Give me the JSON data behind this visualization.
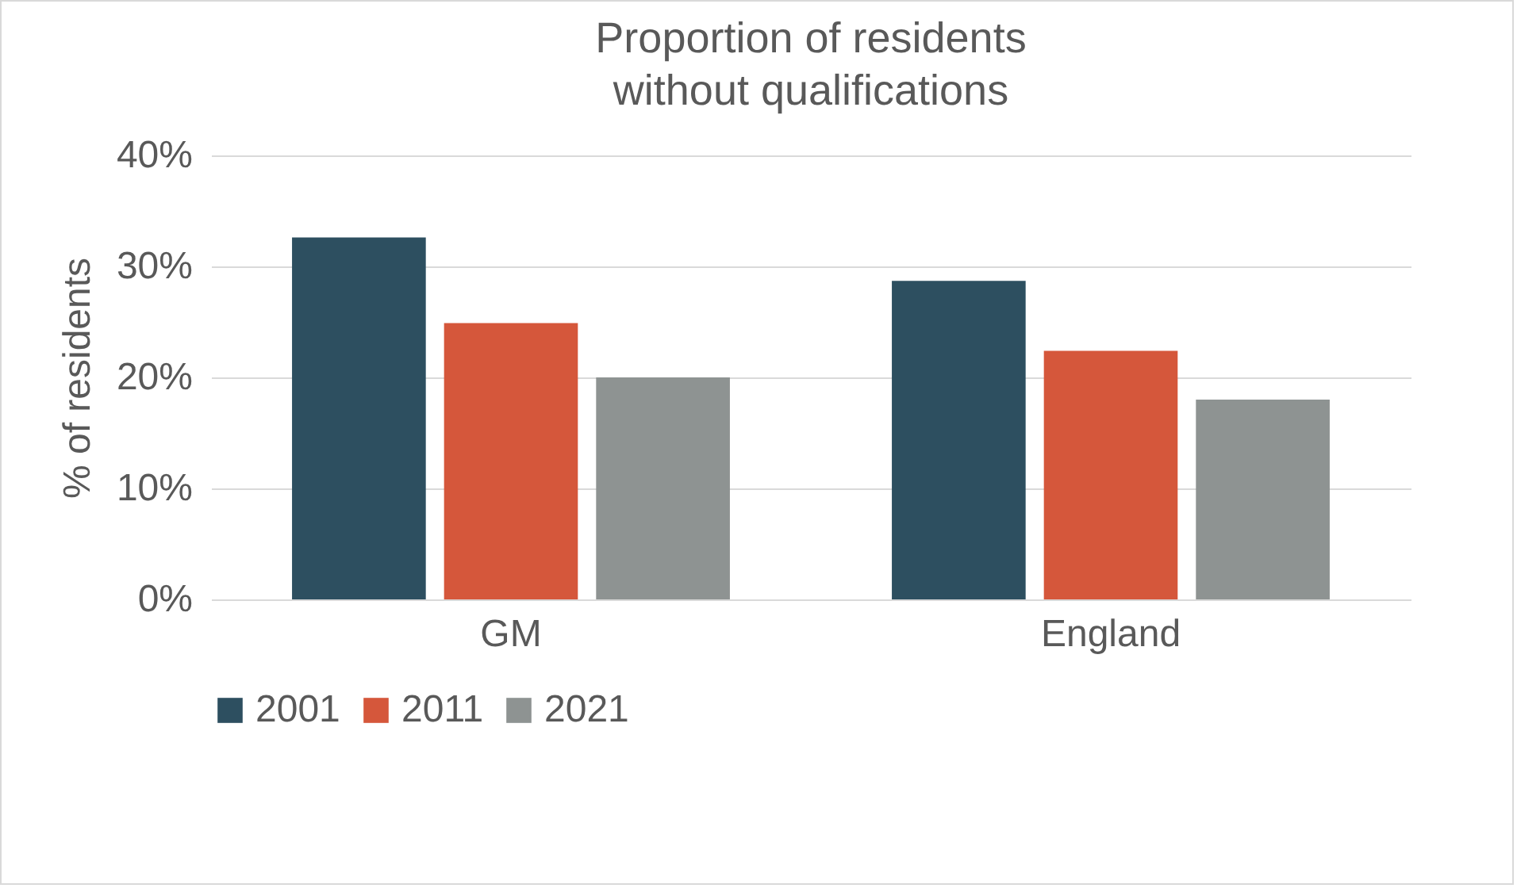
{
  "chart_data": {
    "type": "bar",
    "title": "Proportion of residents\nwithout qualifications",
    "ylabel": "% of residents",
    "categories": [
      "GM",
      "England"
    ],
    "series": [
      {
        "name": "2001",
        "color": "#2d4f60",
        "values": [
          32.6,
          28.7
        ]
      },
      {
        "name": "2011",
        "color": "#d5573b",
        "values": [
          24.9,
          22.4
        ]
      },
      {
        "name": "2021",
        "color": "#8e9392",
        "values": [
          20.0,
          18.0
        ]
      }
    ],
    "ylim": [
      0,
      40
    ],
    "yticks": [
      {
        "value": 0,
        "label": "0%"
      },
      {
        "value": 10,
        "label": "10%"
      },
      {
        "value": 20,
        "label": "20%"
      },
      {
        "value": 30,
        "label": "30%"
      },
      {
        "value": 40,
        "label": "40%"
      }
    ],
    "grid": "y",
    "legend": "bottom"
  }
}
